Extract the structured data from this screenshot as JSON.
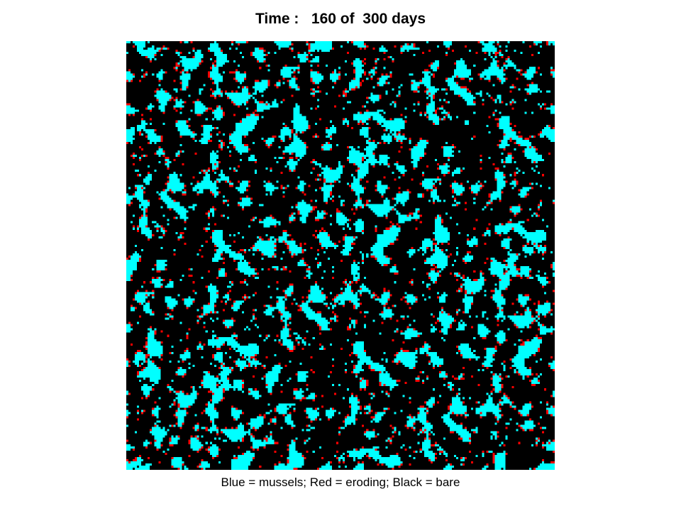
{
  "title": "Time :   160 of  300 days",
  "caption": "Blue = mussels; Red = eroding; Black = bare",
  "simulation": {
    "current_day": 160,
    "total_days": 300
  },
  "colors": {
    "mussels": "#00ffff",
    "eroding": "#ff0000",
    "bare": "#000000"
  }
}
